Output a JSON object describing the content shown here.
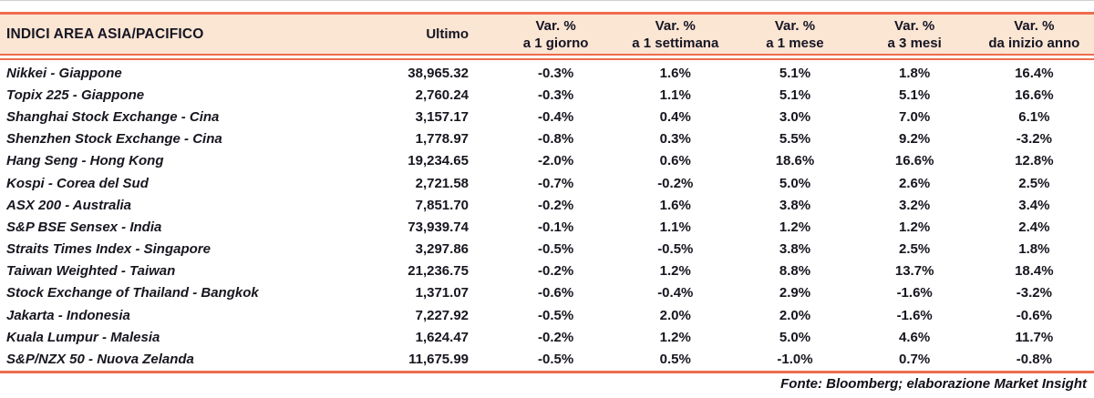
{
  "colors": {
    "accent": "#ED6C4E",
    "header_bg": "#FBE5D3",
    "text": "#16161F"
  },
  "table": {
    "title": "INDICI AREA ASIA/PACIFICO",
    "columns": {
      "ultimo": "Ultimo",
      "var_label": "Var. %",
      "periods": [
        "a 1 giorno",
        "a 1 settimana",
        "a 1 mese",
        "a 3 mesi",
        "da inizio anno"
      ]
    },
    "rows": [
      {
        "name": "Nikkei - Giappone",
        "ultimo": "38,965.32",
        "vars": [
          "-0.3%",
          "1.6%",
          "5.1%",
          "1.8%",
          "16.4%"
        ]
      },
      {
        "name": "Topix 225 - Giappone",
        "ultimo": "2,760.24",
        "vars": [
          "-0.3%",
          "1.1%",
          "5.1%",
          "5.1%",
          "16.6%"
        ]
      },
      {
        "name": "Shanghai Stock Exchange - Cina",
        "ultimo": "3,157.17",
        "vars": [
          "-0.4%",
          "0.4%",
          "3.0%",
          "7.0%",
          "6.1%"
        ]
      },
      {
        "name": "Shenzhen Stock Exchange - Cina",
        "ultimo": "1,778.97",
        "vars": [
          "-0.8%",
          "0.3%",
          "5.5%",
          "9.2%",
          "-3.2%"
        ]
      },
      {
        "name": "Hang Seng - Hong Kong",
        "ultimo": "19,234.65",
        "vars": [
          "-2.0%",
          "0.6%",
          "18.6%",
          "16.6%",
          "12.8%"
        ]
      },
      {
        "name": "Kospi - Corea del Sud",
        "ultimo": "2,721.58",
        "vars": [
          "-0.7%",
          "-0.2%",
          "5.0%",
          "2.6%",
          "2.5%"
        ]
      },
      {
        "name": "ASX 200 - Australia",
        "ultimo": "7,851.70",
        "vars": [
          "-0.2%",
          "1.6%",
          "3.8%",
          "3.2%",
          "3.4%"
        ]
      },
      {
        "name": "S&P BSE Sensex - India",
        "ultimo": "73,939.74",
        "vars": [
          "-0.1%",
          "1.1%",
          "1.2%",
          "1.2%",
          "2.4%"
        ]
      },
      {
        "name": "Straits Times Index - Singapore",
        "ultimo": "3,297.86",
        "vars": [
          "-0.5%",
          "-0.5%",
          "3.8%",
          "2.5%",
          "1.8%"
        ]
      },
      {
        "name": "Taiwan Weighted - Taiwan",
        "ultimo": "21,236.75",
        "vars": [
          "-0.2%",
          "1.2%",
          "8.8%",
          "13.7%",
          "18.4%"
        ]
      },
      {
        "name": "Stock Exchange of Thailand - Bangkok",
        "ultimo": "1,371.07",
        "vars": [
          "-0.6%",
          "-0.4%",
          "2.9%",
          "-1.6%",
          "-3.2%"
        ]
      },
      {
        "name": "Jakarta - Indonesia",
        "ultimo": "7,227.92",
        "vars": [
          "-0.5%",
          "2.0%",
          "2.0%",
          "-1.6%",
          "-0.6%"
        ]
      },
      {
        "name": "Kuala Lumpur - Malesia",
        "ultimo": "1,624.47",
        "vars": [
          "-0.2%",
          "1.2%",
          "5.0%",
          "4.6%",
          "11.7%"
        ]
      },
      {
        "name": "S&P/NZX 50 - Nuova Zelanda",
        "ultimo": "11,675.99",
        "vars": [
          "-0.5%",
          "0.5%",
          "-1.0%",
          "0.7%",
          "-0.8%"
        ]
      }
    ],
    "footer": "Fonte: Bloomberg; elaborazione Market Insight"
  }
}
